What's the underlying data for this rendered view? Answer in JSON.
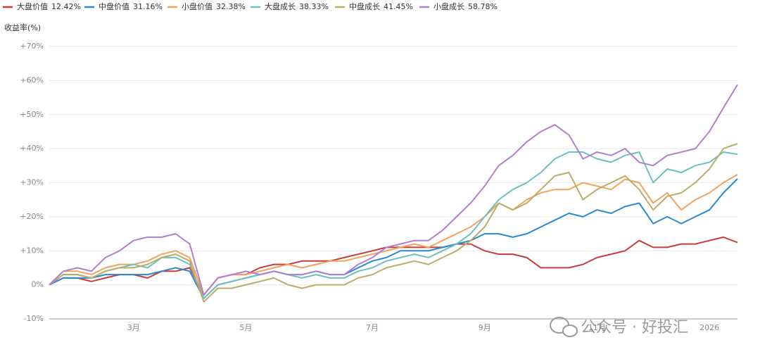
{
  "chart_data": {
    "type": "line",
    "y_label": "收益率(%)",
    "watermark": "公众号 · 好投汇",
    "categories": [
      null,
      null,
      null,
      null,
      null,
      null,
      "3月",
      null,
      null,
      null,
      null,
      null,
      null,
      null,
      "5月",
      null,
      null,
      null,
      null,
      null,
      null,
      null,
      null,
      "7月",
      null,
      null,
      null,
      null,
      null,
      null,
      null,
      "9月",
      null,
      null,
      null,
      null,
      null,
      null,
      null,
      "11月",
      null,
      null,
      null,
      null,
      null,
      null,
      null,
      "2026",
      null,
      null
    ],
    "ylim": [
      -10,
      70
    ],
    "yticks": [
      {
        "value": -10,
        "label": "-10%"
      },
      {
        "value": 0,
        "label": "0%"
      },
      {
        "value": 10,
        "label": "+10%"
      },
      {
        "value": 20,
        "label": "+20%"
      },
      {
        "value": 30,
        "label": "+30%"
      },
      {
        "value": 40,
        "label": "+40%"
      },
      {
        "value": 50,
        "label": "+50%"
      },
      {
        "value": 60,
        "label": "+60%"
      },
      {
        "value": 70,
        "label": "+70%"
      }
    ],
    "grid": true,
    "series": [
      {
        "name": "大盘价值",
        "legend_value": "12.42%",
        "color": "#c83c3c",
        "values": [
          0,
          2,
          2,
          1,
          2,
          3,
          3,
          2,
          4,
          4,
          5,
          -3,
          2,
          3,
          3,
          5,
          6,
          6,
          7,
          7,
          7,
          8,
          9,
          10,
          11,
          11,
          11,
          11,
          11,
          12,
          12,
          10,
          9,
          9,
          8,
          5,
          5,
          5,
          6,
          8,
          9,
          10,
          13,
          11,
          11,
          12,
          12,
          13,
          14,
          12.42
        ]
      },
      {
        "name": "中盘价值",
        "legend_value": "31.16%",
        "color": "#2a88d4",
        "values": [
          0,
          2,
          2,
          2,
          3,
          3,
          3,
          3,
          4,
          5,
          4,
          -4,
          0,
          1,
          2,
          3,
          4,
          3,
          3,
          4,
          3,
          3,
          5,
          7,
          8,
          10,
          10,
          10,
          11,
          12,
          13,
          15,
          15,
          14,
          15,
          17,
          19,
          21,
          20,
          22,
          21,
          23,
          24,
          18,
          20,
          18,
          20,
          22,
          27,
          31.16
        ]
      },
      {
        "name": "小盘价值",
        "legend_value": "32.38%",
        "color": "#f4a25c",
        "values": [
          0,
          4,
          4,
          3,
          5,
          6,
          6,
          7,
          9,
          10,
          8,
          -3,
          2,
          3,
          3,
          4,
          5,
          6,
          5,
          6,
          7,
          7,
          8,
          9,
          10,
          11,
          12,
          11,
          13,
          15,
          17,
          20,
          24,
          22,
          25,
          27,
          28,
          28,
          30,
          29,
          28,
          31,
          30,
          24,
          27,
          22,
          25,
          27,
          30,
          32.38
        ]
      },
      {
        "name": "大盘成长",
        "legend_value": "38.33%",
        "color": "#6dbfc0",
        "values": [
          0,
          3,
          3,
          2,
          4,
          5,
          6,
          5,
          8,
          8,
          6,
          -4,
          0,
          1,
          2,
          3,
          4,
          3,
          2,
          3,
          2,
          2,
          4,
          5,
          7,
          8,
          9,
          8,
          10,
          12,
          15,
          20,
          25,
          28,
          30,
          33,
          37,
          39,
          39,
          37,
          36,
          38,
          39,
          30,
          34,
          33,
          35,
          36,
          39,
          38.33
        ]
      },
      {
        "name": "中盘成长",
        "legend_value": "41.45%",
        "color": "#b8ae68",
        "values": [
          0,
          3,
          3,
          2,
          4,
          5,
          5,
          6,
          8,
          9,
          7,
          -5,
          -1,
          -1,
          0,
          1,
          2,
          0,
          -1,
          0,
          0,
          0,
          2,
          3,
          5,
          6,
          7,
          6,
          8,
          10,
          13,
          17,
          24,
          22,
          24,
          28,
          32,
          33,
          25,
          28,
          30,
          32,
          28,
          22,
          26,
          27,
          30,
          34,
          40,
          41.45
        ]
      },
      {
        "name": "小盘成长",
        "legend_value": "58.78%",
        "color": "#b27ed2",
        "values": [
          0,
          4,
          5,
          4,
          8,
          10,
          13,
          14,
          14,
          15,
          12,
          -3,
          2,
          3,
          4,
          3,
          4,
          3,
          3,
          4,
          3,
          3,
          6,
          8,
          11,
          12,
          13,
          13,
          16,
          20,
          24,
          29,
          35,
          38,
          42,
          45,
          47,
          44,
          37,
          39,
          38,
          40,
          36,
          35,
          38,
          39,
          40,
          45,
          52,
          58.78
        ]
      }
    ]
  }
}
